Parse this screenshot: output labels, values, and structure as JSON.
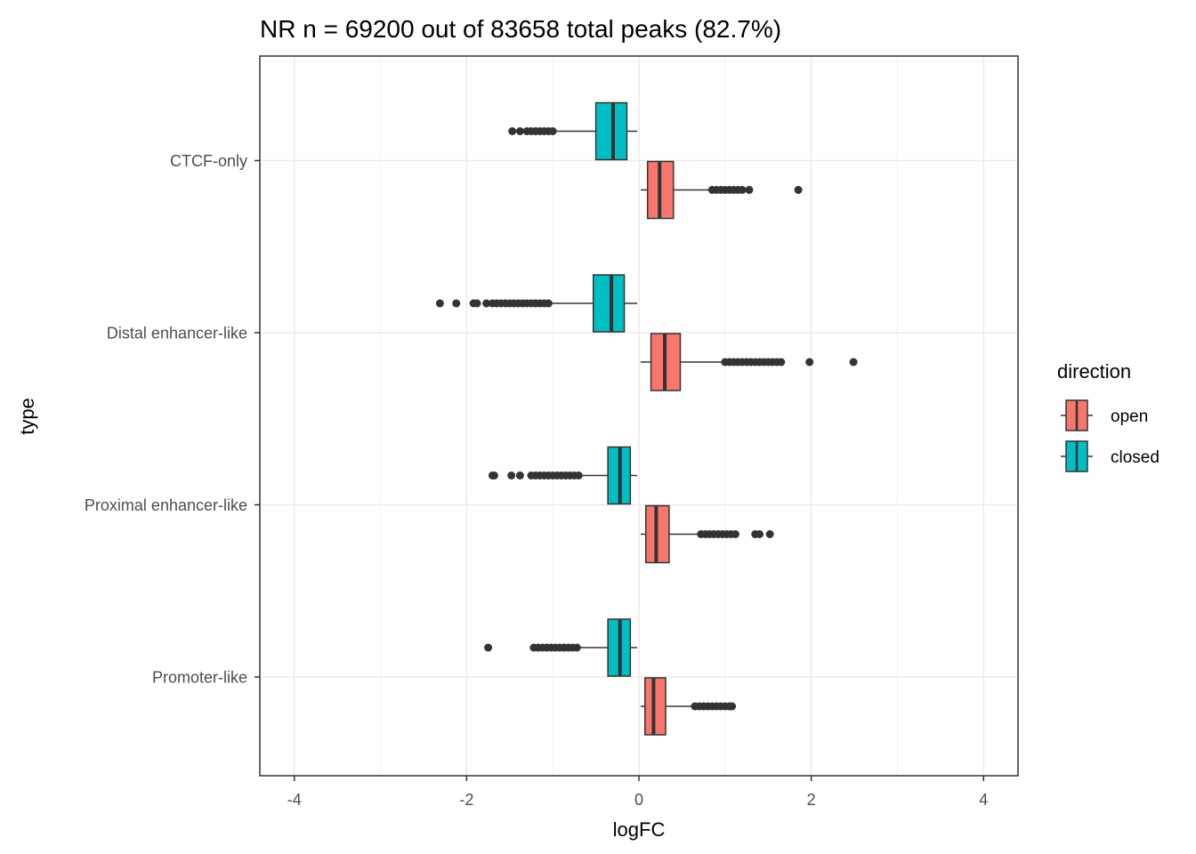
{
  "chart_data": {
    "type": "boxplot",
    "orientation": "horizontal",
    "title": "NR n = 69200 out of 83658 total peaks (82.7%)",
    "xlabel": "logFC",
    "ylabel": "type",
    "xlim": [
      -4.4,
      4.4
    ],
    "x_ticks": [
      -4,
      -2,
      0,
      2,
      4
    ],
    "grid": true,
    "categories": [
      "CTCF-only",
      "Distal enhancer-like",
      "Proximal enhancer-like",
      "Promoter-like"
    ],
    "legend": {
      "title": "direction",
      "position": "right",
      "items": [
        {
          "label": "open",
          "color": "#F8766D"
        },
        {
          "label": "closed",
          "color": "#00BFC4"
        }
      ]
    },
    "series": [
      {
        "name": "open",
        "color": "#F8766D",
        "boxes": [
          {
            "category": "CTCF-only",
            "whisker_low": 0.02,
            "q1": 0.1,
            "median": 0.24,
            "q3": 0.4,
            "whisker_high": 0.82,
            "outliers": [
              0.85,
              0.9,
              0.95,
              1.0,
              1.05,
              1.1,
              1.15,
              1.2,
              1.28,
              1.85
            ]
          },
          {
            "category": "Distal enhancer-like",
            "whisker_low": 0.02,
            "q1": 0.14,
            "median": 0.3,
            "q3": 0.48,
            "whisker_high": 0.98,
            "outliers": [
              1.0,
              1.05,
              1.1,
              1.15,
              1.2,
              1.25,
              1.3,
              1.35,
              1.4,
              1.45,
              1.5,
              1.55,
              1.6,
              1.65,
              1.98,
              2.49
            ]
          },
          {
            "category": "Proximal enhancer-like",
            "whisker_low": 0.02,
            "q1": 0.08,
            "median": 0.2,
            "q3": 0.35,
            "whisker_high": 0.7,
            "outliers": [
              0.72,
              0.77,
              0.82,
              0.87,
              0.92,
              0.97,
              1.02,
              1.07,
              1.12,
              1.35,
              1.4,
              1.52
            ]
          },
          {
            "category": "Promoter-like",
            "whisker_low": 0.02,
            "q1": 0.07,
            "median": 0.17,
            "q3": 0.31,
            "whisker_high": 0.62,
            "outliers": [
              0.65,
              0.7,
              0.75,
              0.8,
              0.85,
              0.9,
              0.95,
              1.0,
              1.05,
              1.08
            ]
          }
        ]
      },
      {
        "name": "closed",
        "color": "#00BFC4",
        "boxes": [
          {
            "category": "CTCF-only",
            "whisker_low": -0.98,
            "q1": -0.5,
            "median": -0.3,
            "q3": -0.14,
            "whisker_high": -0.02,
            "outliers": [
              -1.0,
              -1.05,
              -1.1,
              -1.15,
              -1.2,
              -1.25,
              -1.3,
              -1.38,
              -1.47
            ]
          },
          {
            "category": "Distal enhancer-like",
            "whisker_low": -1.02,
            "q1": -0.53,
            "median": -0.32,
            "q3": -0.17,
            "whisker_high": -0.02,
            "outliers": [
              -1.05,
              -1.1,
              -1.15,
              -1.2,
              -1.25,
              -1.3,
              -1.35,
              -1.4,
              -1.45,
              -1.5,
              -1.55,
              -1.6,
              -1.65,
              -1.7,
              -1.77,
              -1.88,
              -1.92,
              -2.12,
              -2.31
            ]
          },
          {
            "category": "Proximal enhancer-like",
            "whisker_low": -0.66,
            "q1": -0.36,
            "median": -0.22,
            "q3": -0.1,
            "whisker_high": -0.02,
            "outliers": [
              -0.7,
              -0.75,
              -0.8,
              -0.85,
              -0.9,
              -0.95,
              -1.0,
              -1.05,
              -1.1,
              -1.15,
              -1.2,
              -1.25,
              -1.38,
              -1.48,
              -1.68,
              -1.7
            ]
          },
          {
            "category": "Promoter-like",
            "whisker_low": -0.69,
            "q1": -0.36,
            "median": -0.22,
            "q3": -0.1,
            "whisker_high": -0.02,
            "outliers": [
              -0.72,
              -0.77,
              -0.82,
              -0.87,
              -0.92,
              -0.97,
              -1.02,
              -1.07,
              -1.12,
              -1.17,
              -1.22,
              -1.75
            ]
          }
        ]
      }
    ]
  }
}
